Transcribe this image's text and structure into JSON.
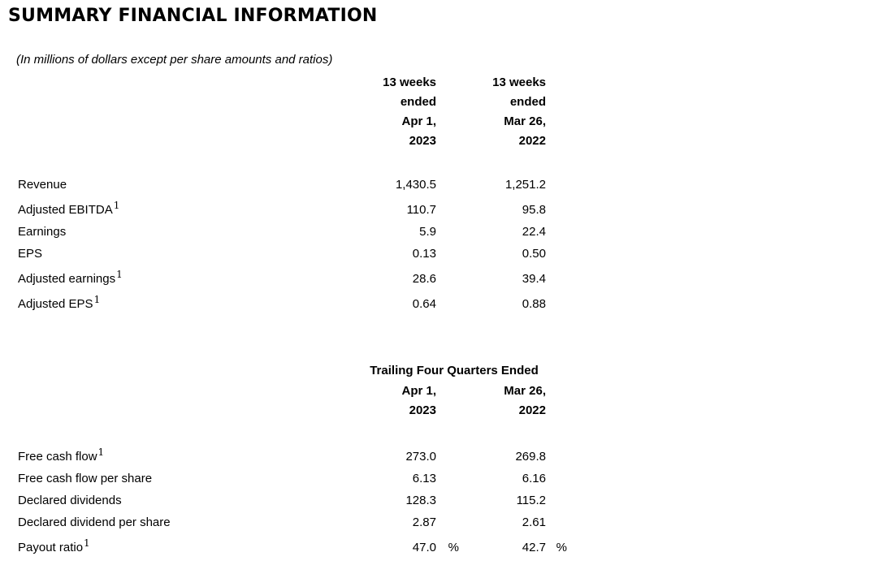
{
  "page": {
    "title": "SUMMARY FINANCIAL INFORMATION",
    "subtitle": "(In millions of dollars except per share amounts and ratios)"
  },
  "table1": {
    "col1_header_lines": [
      "13 weeks",
      "ended",
      "Apr 1,",
      "2023"
    ],
    "col2_header_lines": [
      "13 weeks",
      "ended",
      "Mar 26,",
      "2022"
    ],
    "rows": [
      {
        "label": "Revenue",
        "sup": "",
        "val1": "1,430.5",
        "unit1": "",
        "val2": "1,251.2",
        "unit2": ""
      },
      {
        "label": "Adjusted EBITDA",
        "sup": "1",
        "val1": "110.7",
        "unit1": "",
        "val2": "95.8",
        "unit2": ""
      },
      {
        "label": "Earnings",
        "sup": "",
        "val1": "5.9",
        "unit1": "",
        "val2": "22.4",
        "unit2": ""
      },
      {
        "label": "EPS",
        "sup": "",
        "val1": "0.13",
        "unit1": "",
        "val2": "0.50",
        "unit2": ""
      },
      {
        "label": "Adjusted earnings",
        "sup": "1",
        "val1": "28.6",
        "unit1": "",
        "val2": "39.4",
        "unit2": ""
      },
      {
        "label": "Adjusted EPS",
        "sup": "1",
        "val1": "0.64",
        "unit1": "",
        "val2": "0.88",
        "unit2": ""
      }
    ]
  },
  "table2": {
    "group_header": "Trailing Four Quarters Ended",
    "col1_header_lines": [
      "Apr 1,",
      "2023"
    ],
    "col2_header_lines": [
      "Mar 26,",
      "2022"
    ],
    "rows": [
      {
        "label": "Free cash flow",
        "sup": "1",
        "val1": "273.0",
        "unit1": "",
        "val2": "269.8",
        "unit2": ""
      },
      {
        "label": "Free cash flow per share",
        "sup": "",
        "val1": "6.13",
        "unit1": "",
        "val2": "6.16",
        "unit2": ""
      },
      {
        "label": "Declared dividends",
        "sup": "",
        "val1": "128.3",
        "unit1": "",
        "val2": "115.2",
        "unit2": ""
      },
      {
        "label": "Declared dividend per share",
        "sup": "",
        "val1": "2.87",
        "unit1": "",
        "val2": "2.61",
        "unit2": ""
      },
      {
        "label": "Payout ratio",
        "sup": "1",
        "val1": "47.0",
        "unit1": "%",
        "val2": "42.7",
        "unit2": "%"
      }
    ]
  }
}
